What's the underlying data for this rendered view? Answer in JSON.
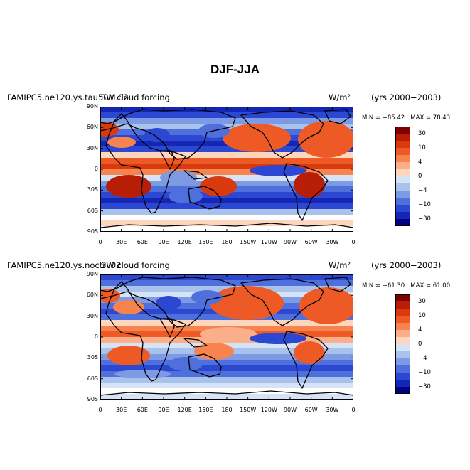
{
  "title": "DJF-JJA",
  "colorbar": {
    "levels": [
      "30",
      "10",
      "4",
      "0",
      "−4",
      "−10",
      "−30"
    ],
    "colors": [
      "#7f0000",
      "#b81d05",
      "#d93a0d",
      "#ee5a25",
      "#f7834f",
      "#fbae8a",
      "#fdd6bd",
      "#ffffff",
      "#d5e3f6",
      "#a9c2ec",
      "#7d9ae4",
      "#4f70dc",
      "#2c47d2",
      "#1427b4",
      "#000080"
    ]
  },
  "lat_labels": [
    "90N",
    "60N",
    "30N",
    "0",
    "30S",
    "60S",
    "90S"
  ],
  "lon_labels": [
    "0",
    "30E",
    "60E",
    "90E",
    "120E",
    "150E",
    "180",
    "150W",
    "120W",
    "90W",
    "60W",
    "30W",
    "0"
  ],
  "panels": [
    {
      "case_label": "FAMIPC5.ne120.ys.tau50M.02",
      "variable_label": "SW cloud forcing",
      "units": "W/m²",
      "years": "(yrs 2000−2003)",
      "min_label": "MIN = −85.42",
      "max_label": "MAX =  78.43",
      "min": -85.42,
      "max": 78.43
    },
    {
      "case_label": "FAMIPC5.ne120.ys.noctrl.02",
      "variable_label": "SW cloud forcing",
      "units": "W/m²",
      "years": "(yrs 2000−2003)",
      "min_label": "MIN = −61.30",
      "max_label": "MAX =  61.00",
      "min": -61.3,
      "max": 61.0
    }
  ]
}
